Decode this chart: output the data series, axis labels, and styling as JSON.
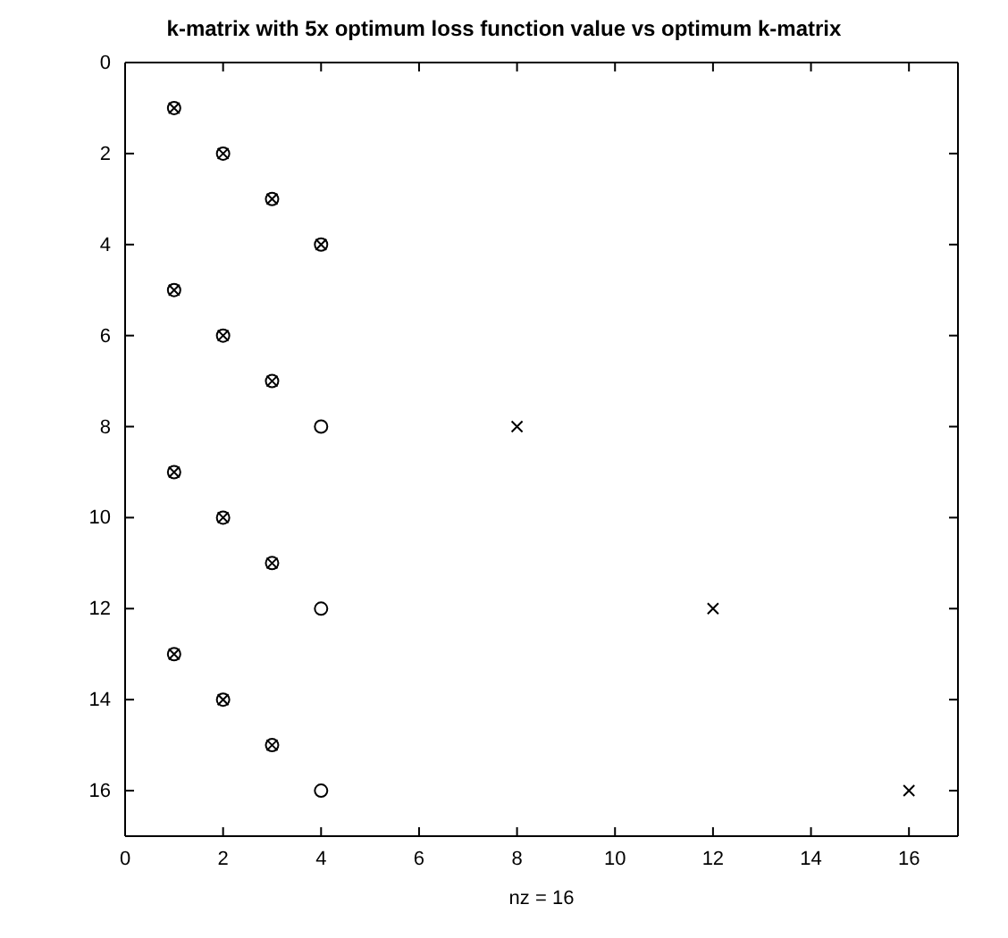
{
  "chart_data": {
    "type": "scatter",
    "title": "k-matrix with 5x optimum loss function value vs optimum k-matrix",
    "xlabel": "nz = 16",
    "xlim": [
      0,
      17
    ],
    "ylim": [
      17,
      0
    ],
    "xticks": [
      0,
      2,
      4,
      6,
      8,
      10,
      12,
      14,
      16
    ],
    "yticks": [
      0,
      2,
      4,
      6,
      8,
      10,
      12,
      14,
      16
    ],
    "grid": false,
    "series": [
      {
        "color": "#000000",
        "marker": "circle",
        "x": [
          1,
          2,
          3,
          4,
          1,
          2,
          3,
          4,
          1,
          2,
          3,
          4,
          1,
          2,
          3,
          4
        ],
        "values": [
          1,
          2,
          3,
          4,
          5,
          6,
          7,
          8,
          9,
          10,
          11,
          12,
          13,
          14,
          15,
          16
        ]
      },
      {
        "color": "#000000",
        "marker": "cross",
        "x": [
          1,
          2,
          3,
          4,
          1,
          2,
          3,
          8,
          1,
          2,
          3,
          12,
          1,
          2,
          3,
          16
        ],
        "values": [
          1,
          2,
          3,
          4,
          5,
          6,
          7,
          8,
          9,
          10,
          11,
          12,
          13,
          14,
          15,
          16
        ]
      }
    ]
  }
}
